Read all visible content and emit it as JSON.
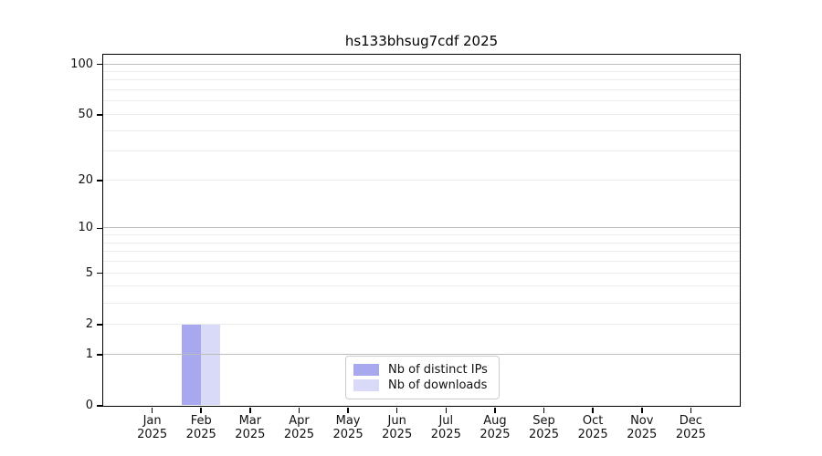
{
  "chart_data": {
    "type": "bar",
    "title": "hs133bhsug7cdf 2025",
    "categories": [
      "Jan",
      "Feb",
      "Mar",
      "Apr",
      "May",
      "Jun",
      "Jul",
      "Aug",
      "Sep",
      "Oct",
      "Nov",
      "Dec"
    ],
    "x_year": "2025",
    "series": [
      {
        "name": "Nb of distinct IPs",
        "color": "#a8a8ef",
        "values": [
          0,
          2,
          0,
          0,
          0,
          0,
          0,
          0,
          0,
          0,
          0,
          0
        ]
      },
      {
        "name": "Nb of downloads",
        "color": "#d9d9f8",
        "values": [
          0,
          2,
          0,
          0,
          0,
          0,
          0,
          0,
          0,
          0,
          0,
          0
        ]
      }
    ],
    "yscale": "log1p",
    "ylim": [
      0,
      114
    ],
    "ytick_values": [
      0,
      1,
      2,
      5,
      10,
      20,
      50,
      100
    ],
    "ytick_labels": [
      "0",
      "1",
      "2",
      "5",
      "10",
      "20",
      "50",
      "100"
    ],
    "grid_major_values": [
      1,
      10,
      100
    ],
    "grid_minor_values": [
      2,
      3,
      4,
      5,
      6,
      7,
      8,
      9,
      20,
      30,
      40,
      50,
      60,
      70,
      80,
      90
    ],
    "grid": true,
    "legend_position": "lower center",
    "xlabel": "",
    "ylabel": ""
  },
  "legend": {
    "items": [
      {
        "label": "Nb of distinct IPs",
        "color": "#a8a8ef"
      },
      {
        "label": "Nb of downloads",
        "color": "#d9d9f8"
      }
    ]
  },
  "colors": {
    "background": "#ffffff",
    "axis": "#000000",
    "grid_major": "#bdbdbd",
    "grid_minor": "#ebebeb",
    "text": "#111111"
  }
}
